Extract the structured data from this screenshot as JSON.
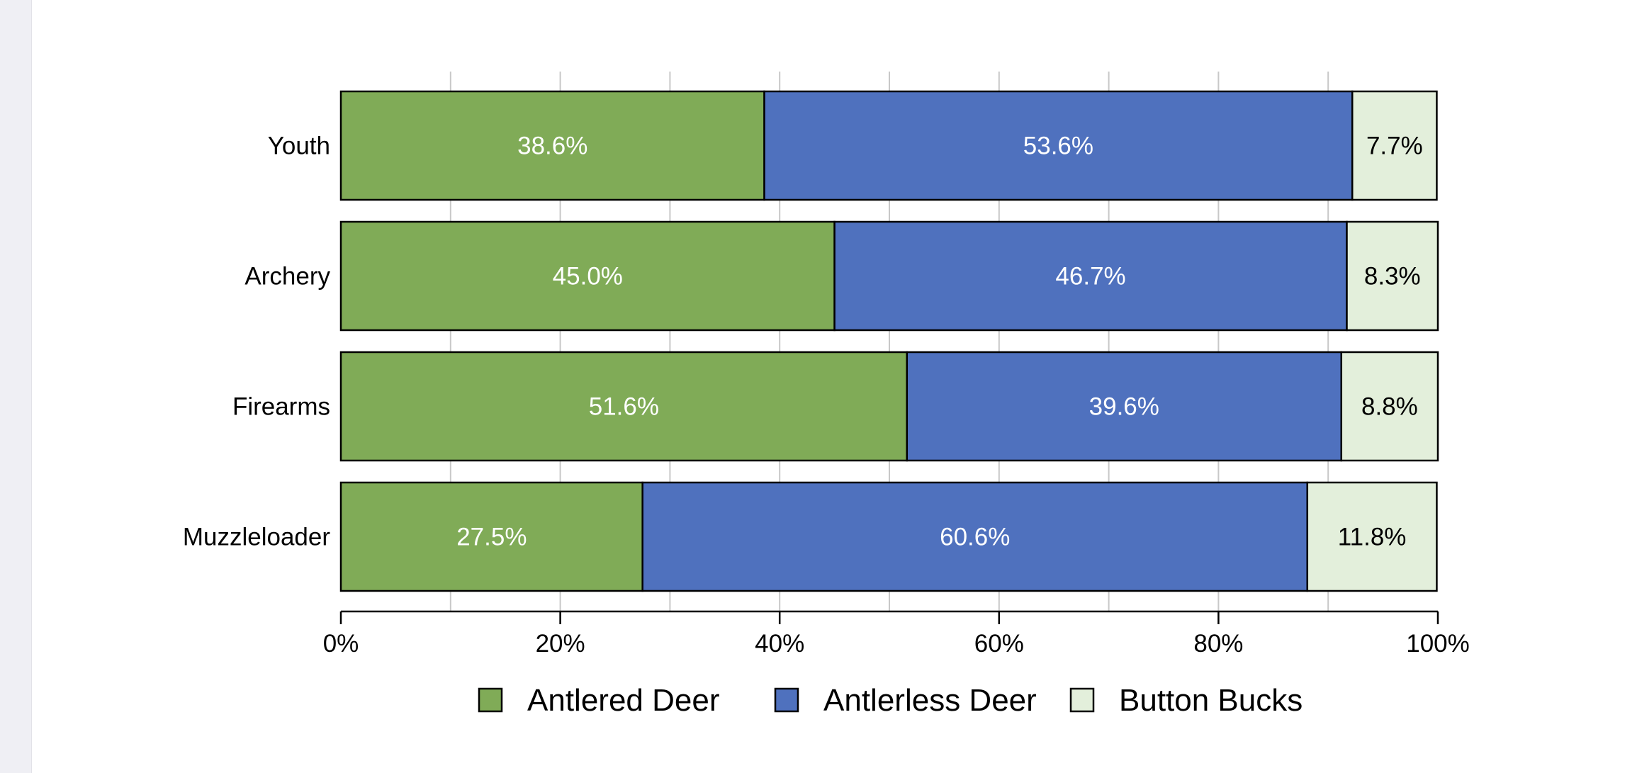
{
  "chart_data": {
    "type": "bar",
    "orientation": "horizontal",
    "stacked": true,
    "percent": true,
    "categories": [
      "Youth",
      "Archery",
      "Firearms",
      "Muzzleloader"
    ],
    "series": [
      {
        "name": "Antlered Deer",
        "color": "#80ab57",
        "label_color": "#ffffff",
        "values": [
          38.6,
          45.0,
          51.6,
          27.5
        ],
        "labels": [
          "38.6%",
          "45.0%",
          "51.6%",
          "27.5%"
        ]
      },
      {
        "name": "Antlerless Deer",
        "color": "#4f71be",
        "label_color": "#ffffff",
        "values": [
          53.6,
          46.7,
          39.6,
          60.6
        ],
        "labels": [
          "53.6%",
          "46.7%",
          "39.6%",
          "60.6%"
        ]
      },
      {
        "name": "Button Bucks",
        "color": "#e3efdb",
        "label_color": "#000000",
        "values": [
          7.7,
          8.3,
          8.8,
          11.8
        ],
        "labels": [
          "7.7%",
          "8.3%",
          "8.8%",
          "11.8%"
        ]
      }
    ],
    "xlim": [
      0,
      100
    ],
    "xticks": [
      0,
      20,
      40,
      60,
      80,
      100
    ],
    "xtick_labels": [
      "0%",
      "20%",
      "40%",
      "60%",
      "80%",
      "100%"
    ],
    "grid_every": 10,
    "grid": true,
    "legend_position": "bottom",
    "title": "",
    "xlabel": "",
    "ylabel": ""
  }
}
